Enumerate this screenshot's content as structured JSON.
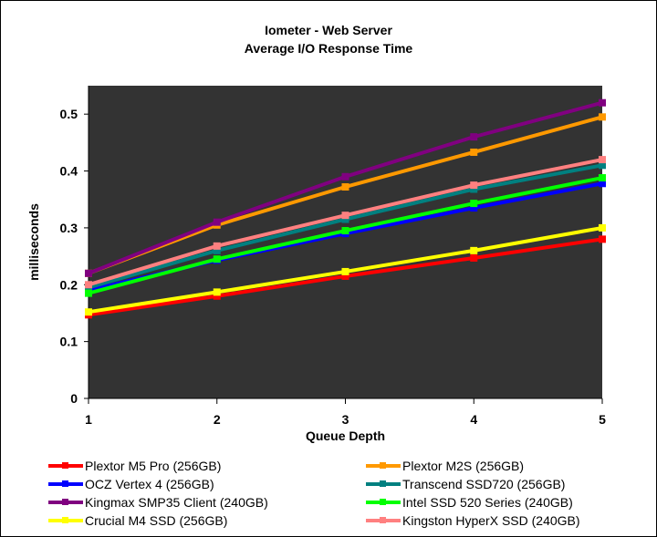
{
  "chart_data": {
    "type": "line",
    "title": "Iometer - Web Server",
    "subtitle": "Average I/O Response Time",
    "xlabel": "Queue Depth",
    "ylabel": "milliseconds",
    "x": [
      1,
      2,
      3,
      4,
      5
    ],
    "xticks": [
      "1",
      "2",
      "3",
      "4",
      "5"
    ],
    "yticks": [
      "0",
      "0.1",
      "0.2",
      "0.3",
      "0.4",
      "0.5"
    ],
    "ylim": [
      0,
      0.55
    ],
    "xlim": [
      1,
      5
    ],
    "legend_position": "bottom",
    "series": [
      {
        "name": "Plextor M5 Pro (256GB)",
        "color": "#ff0000",
        "values": [
          0.147,
          0.18,
          0.215,
          0.247,
          0.28
        ]
      },
      {
        "name": "Plextor M2S (256GB)",
        "color": "#ff9900",
        "values": [
          0.22,
          0.305,
          0.372,
          0.433,
          0.495
        ]
      },
      {
        "name": "OCZ Vertex 4 (256GB)",
        "color": "#0000ff",
        "values": [
          0.19,
          0.243,
          0.29,
          0.335,
          0.378
        ]
      },
      {
        "name": "Transcend SSD720 (256GB)",
        "color": "#008080",
        "values": [
          0.195,
          0.26,
          0.315,
          0.368,
          0.41
        ]
      },
      {
        "name": "Kingmax SMP35 Client (240GB)",
        "color": "#800080",
        "values": [
          0.22,
          0.31,
          0.39,
          0.46,
          0.52
        ]
      },
      {
        "name": "Intel SSD 520 Series (240GB)",
        "color": "#00ff00",
        "values": [
          0.185,
          0.245,
          0.295,
          0.343,
          0.388
        ]
      },
      {
        "name": "Crucial M4 SSD (256GB)",
        "color": "#ffff00",
        "values": [
          0.152,
          0.187,
          0.223,
          0.26,
          0.3
        ]
      },
      {
        "name": "Kingston HyperX SSD (240GB)",
        "color": "#ff8080",
        "values": [
          0.2,
          0.268,
          0.322,
          0.375,
          0.42
        ]
      }
    ]
  }
}
